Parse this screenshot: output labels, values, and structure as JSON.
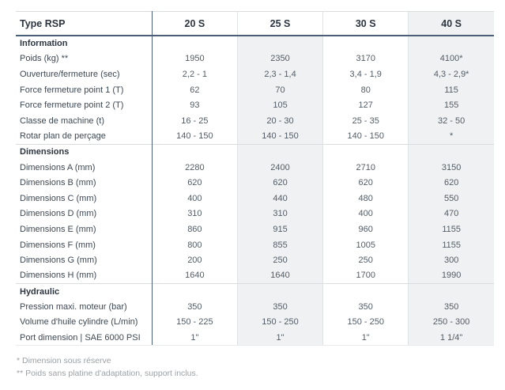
{
  "table": {
    "header": {
      "label": "Type RSP",
      "columns": [
        "20 S",
        "25 S",
        "30 S",
        "40 S"
      ]
    },
    "sections": [
      {
        "title": "Information",
        "rows": [
          {
            "label": "Poids (kg) **",
            "values": [
              "1950",
              "2350",
              "3170",
              "4100*"
            ]
          },
          {
            "label": "Ouverture/fermeture (sec)",
            "values": [
              "2,2 - 1",
              "2,3 - 1,4",
              "3,4 - 1,9",
              "4,3 - 2,9*"
            ]
          },
          {
            "label": "Force fermeture point 1 (T)",
            "values": [
              "62",
              "70",
              "80",
              "115"
            ]
          },
          {
            "label": "Force fermeture point 2 (T)",
            "values": [
              "93",
              "105",
              "127",
              "155"
            ]
          },
          {
            "label": "Classe de machine (t)",
            "values": [
              "16 - 25",
              "20 - 30",
              "25 - 35",
              "32 - 50"
            ]
          },
          {
            "label": "Rotar plan de perçage",
            "values": [
              "140 - 150",
              "140 - 150",
              "140 - 150",
              "*"
            ]
          }
        ]
      },
      {
        "title": "Dimensions",
        "rows": [
          {
            "label": "Dimensions A (mm)",
            "values": [
              "2280",
              "2400",
              "2710",
              "3150"
            ]
          },
          {
            "label": "Dimensions B (mm)",
            "values": [
              "620",
              "620",
              "620",
              "620"
            ]
          },
          {
            "label": "Dimensions C (mm)",
            "values": [
              "400",
              "440",
              "480",
              "550"
            ]
          },
          {
            "label": "Dimensions D (mm)",
            "values": [
              "310",
              "310",
              "400",
              "470"
            ]
          },
          {
            "label": "Dimensions E (mm)",
            "values": [
              "860",
              "915",
              "960",
              "1155"
            ]
          },
          {
            "label": "Dimensions F (mm)",
            "values": [
              "800",
              "855",
              "1005",
              "1155"
            ]
          },
          {
            "label": "Dimensions G (mm)",
            "values": [
              "200",
              "250",
              "250",
              "300"
            ]
          },
          {
            "label": "Dimensions H (mm)",
            "values": [
              "1640",
              "1640",
              "1700",
              "1990"
            ]
          }
        ]
      },
      {
        "title": "Hydraulic",
        "rows": [
          {
            "label": "Pression maxi. moteur (bar)",
            "values": [
              "350",
              "350",
              "350",
              "350"
            ]
          },
          {
            "label": "Volume d'huile cylindre (L/min)",
            "values": [
              "150 - 225",
              "150 - 250",
              "150 - 250",
              "250 - 300"
            ]
          },
          {
            "label": "Port dimension | SAE 6000 PSI",
            "values": [
              "1\"",
              "1\"",
              "1\"",
              "1 1/4\""
            ]
          }
        ]
      }
    ]
  },
  "footnotes": [
    "* Dimension sous réserve",
    "** Poids sans platine d'adaptation, support inclus."
  ],
  "colors": {
    "accent_line": "#4a5f75",
    "column_shade": "#f0f1f2",
    "light_border": "#d9dcdf",
    "heading_text": "#2c3540",
    "label_text": "#3d4854",
    "value_text": "#525c66",
    "footnote_text": "#9ba1a7"
  }
}
